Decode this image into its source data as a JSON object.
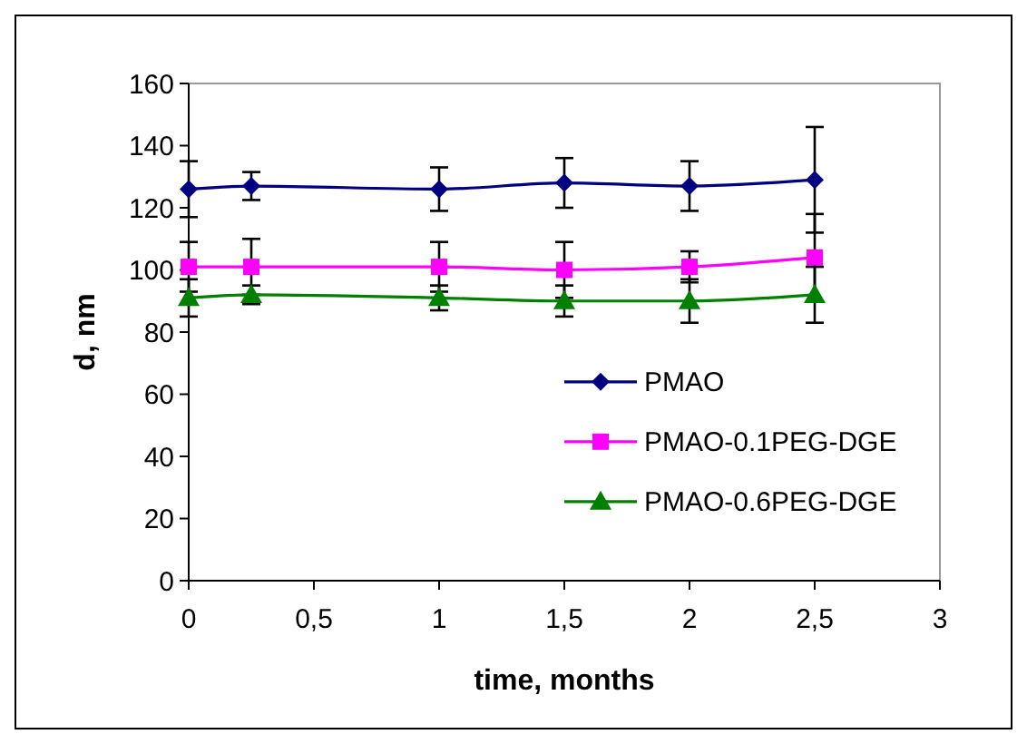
{
  "chart_data": {
    "type": "line",
    "xlabel": "time, months",
    "ylabel": "d, nm",
    "x": [
      0,
      0.25,
      1,
      1.5,
      2,
      2.5
    ],
    "xlim": [
      0,
      3
    ],
    "xticks": [
      0,
      {
        "value": 0.5,
        "label": "0,5"
      },
      1,
      {
        "value": 1.5,
        "label": "1,5"
      },
      2,
      {
        "value": 2.5,
        "label": "2,5"
      },
      3
    ],
    "ylim": [
      0,
      160
    ],
    "yticks": [
      0,
      20,
      40,
      60,
      80,
      100,
      120,
      140,
      160
    ],
    "grid": false,
    "legend": "right",
    "line_style": "solid",
    "series": [
      {
        "name": "PMAO",
        "color": "#000080",
        "marker": "diamond",
        "values": [
          126,
          127,
          126,
          128,
          127,
          129
        ],
        "errors": [
          9,
          4.5,
          7,
          8,
          8,
          17
        ]
      },
      {
        "name": "PMAO-0.1PEG-DGE",
        "color": "#ff00ff",
        "marker": "square",
        "values": [
          101,
          101,
          101,
          100,
          101,
          104
        ],
        "errors": [
          8,
          9,
          8,
          9,
          5,
          14
        ]
      },
      {
        "name": "PMAO-0.6PEG-DGE",
        "color": "#008000",
        "marker": "triangle",
        "values": [
          91,
          92,
          91,
          90,
          90,
          92
        ],
        "errors": [
          6,
          3,
          4,
          5,
          7,
          9
        ]
      }
    ]
  }
}
